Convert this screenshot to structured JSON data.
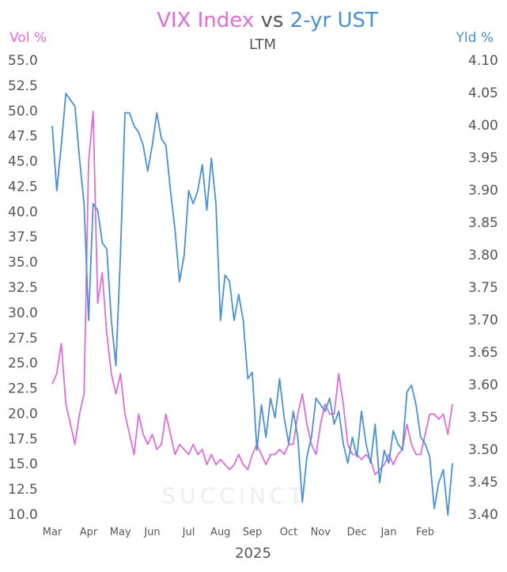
{
  "chart_data": {
    "type": "line",
    "title_connector": "vs",
    "subtitle": "LTM",
    "y_label": "Vol %",
    "y2_label": "Yld %",
    "x_label": "2025",
    "watermark": "SUCCINCT",
    "categories": [
      "Mar",
      null,
      null,
      null,
      null,
      null,
      null,
      null,
      "Apr",
      null,
      null,
      null,
      null,
      null,
      null,
      "May",
      null,
      null,
      null,
      null,
      null,
      null,
      "Jun",
      null,
      null,
      null,
      null,
      null,
      null,
      null,
      "Jul",
      null,
      null,
      null,
      null,
      null,
      null,
      "Aug",
      null,
      null,
      null,
      null,
      null,
      null,
      "Sep",
      null,
      null,
      null,
      null,
      null,
      null,
      null,
      "Oct",
      null,
      null,
      null,
      null,
      null,
      null,
      "Nov",
      null,
      null,
      null,
      null,
      null,
      null,
      null,
      "Dec",
      null,
      null,
      null,
      null,
      null,
      null,
      "Jan",
      null,
      null,
      null,
      null,
      null,
      null,
      null,
      "Feb",
      null,
      null,
      null,
      null,
      null,
      null
    ],
    "series": [
      {
        "name": "VIX Index",
        "color": "#dd6ed4",
        "values": [
          23,
          24,
          27,
          21,
          19,
          17,
          20,
          22,
          45,
          50,
          31,
          34,
          28,
          24,
          22,
          24,
          20,
          18,
          16,
          20,
          18,
          17,
          18,
          16.5,
          17,
          20,
          18,
          16,
          17,
          16.5,
          16,
          17,
          16,
          16.5,
          15,
          16,
          15,
          15.5,
          15,
          14.5,
          15,
          16,
          15,
          14.5,
          16,
          17,
          16,
          15,
          16,
          16,
          16.5,
          16,
          17,
          17,
          20,
          22,
          19,
          17,
          16,
          19,
          21,
          20,
          20,
          24,
          21,
          17,
          16,
          16,
          15.5,
          16,
          15.5,
          14,
          14.5,
          15,
          16,
          15,
          16,
          16.5,
          19,
          17,
          16,
          16,
          18,
          20,
          20,
          19.5,
          20,
          18,
          21
        ]
      },
      {
        "name": "2-yr UST",
        "color": "#4a90d4",
        "axis": "y2",
        "values": [
          4.0,
          3.9,
          3.97,
          4.05,
          4.04,
          4.03,
          3.95,
          3.88,
          3.7,
          3.88,
          3.87,
          3.82,
          3.81,
          3.7,
          3.63,
          3.8,
          4.02,
          4.02,
          4.0,
          3.99,
          3.97,
          3.93,
          3.97,
          4.02,
          3.98,
          3.97,
          3.9,
          3.84,
          3.76,
          3.8,
          3.9,
          3.88,
          3.9,
          3.94,
          3.87,
          3.95,
          3.88,
          3.7,
          3.77,
          3.76,
          3.7,
          3.74,
          3.7,
          3.61,
          3.62,
          3.5,
          3.57,
          3.52,
          3.58,
          3.55,
          3.61,
          3.55,
          3.51,
          3.56,
          3.52,
          3.42,
          3.49,
          3.52,
          3.58,
          3.57,
          3.56,
          3.58,
          3.54,
          3.56,
          3.51,
          3.48,
          3.52,
          3.49,
          3.56,
          3.51,
          3.48,
          3.54,
          3.45,
          3.5,
          3.48,
          3.53,
          3.51,
          3.5,
          3.59,
          3.6,
          3.57,
          3.52,
          3.51,
          3.49,
          3.41,
          3.45,
          3.47,
          3.4,
          3.48
        ]
      }
    ],
    "ylim": [
      10,
      55
    ],
    "yticks": [
      {
        "value": 10,
        "label": "10.0"
      },
      {
        "value": 12.5,
        "label": "12.5"
      },
      {
        "value": 15,
        "label": "15.0"
      },
      {
        "value": 17.5,
        "label": "17.5"
      },
      {
        "value": 20,
        "label": "20.0"
      },
      {
        "value": 22.5,
        "label": "22.5"
      },
      {
        "value": 25,
        "label": "25.0"
      },
      {
        "value": 27.5,
        "label": "27.5"
      },
      {
        "value": 30,
        "label": "30.0"
      },
      {
        "value": 32.5,
        "label": "32.5"
      },
      {
        "value": 35,
        "label": "35.0"
      },
      {
        "value": 37.5,
        "label": "37.5"
      },
      {
        "value": 40,
        "label": "40.0"
      },
      {
        "value": 42.5,
        "label": "42.5"
      },
      {
        "value": 45,
        "label": "45.0"
      },
      {
        "value": 47.5,
        "label": "47.5"
      },
      {
        "value": 50,
        "label": "50.0"
      },
      {
        "value": 52.5,
        "label": "52.5"
      },
      {
        "value": 55,
        "label": "55.0"
      }
    ],
    "y2lim": [
      3.4,
      4.1
    ],
    "y2ticks": [
      {
        "value": 3.4,
        "label": "3.40"
      },
      {
        "value": 3.45,
        "label": "3.45"
      },
      {
        "value": 3.5,
        "label": "3.50"
      },
      {
        "value": 3.55,
        "label": "3.55"
      },
      {
        "value": 3.6,
        "label": "3.60"
      },
      {
        "value": 3.65,
        "label": "3.65"
      },
      {
        "value": 3.7,
        "label": "3.70"
      },
      {
        "value": 3.75,
        "label": "3.75"
      },
      {
        "value": 3.8,
        "label": "3.80"
      },
      {
        "value": 3.85,
        "label": "3.85"
      },
      {
        "value": 3.9,
        "label": "3.90"
      },
      {
        "value": 3.95,
        "label": "3.95"
      },
      {
        "value": 4,
        "label": "4.00"
      },
      {
        "value": 4.05,
        "label": "4.05"
      },
      {
        "value": 4.1,
        "label": "4.10"
      }
    ],
    "grid": false
  }
}
